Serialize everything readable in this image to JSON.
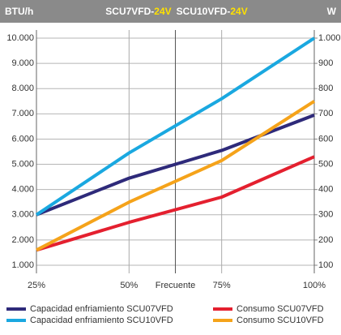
{
  "chart_data": {
    "type": "line",
    "y_label": "BTU/h",
    "y2_label": "W",
    "title": [
      "SCU7VFD-",
      "24V",
      "SCU10VFD-",
      "24V"
    ],
    "x": [
      25,
      50,
      75,
      100
    ],
    "xlim": [
      25,
      100
    ],
    "xticks": [
      {
        "value": 25,
        "label": "25%"
      },
      {
        "value": 50,
        "label": "50%"
      },
      {
        "value": 62.5,
        "label": "Frecuente"
      },
      {
        "value": 75,
        "label": "75%"
      },
      {
        "value": 100,
        "label": "100%"
      }
    ],
    "ylim": [
      1000,
      10000
    ],
    "yticks": [
      {
        "value": 1000,
        "label": "1.000"
      },
      {
        "value": 2000,
        "label": "2.000"
      },
      {
        "value": 3000,
        "label": "3.000"
      },
      {
        "value": 4000,
        "label": "4.000"
      },
      {
        "value": 5000,
        "label": "5.000"
      },
      {
        "value": 6000,
        "label": "6.000"
      },
      {
        "value": 7000,
        "label": "7.000"
      },
      {
        "value": 8000,
        "label": "8.000"
      },
      {
        "value": 9000,
        "label": "9.000"
      },
      {
        "value": 10000,
        "label": "10.000"
      }
    ],
    "y2lim": [
      100,
      1000
    ],
    "y2ticks": [
      100,
      200,
      300,
      400,
      500,
      600,
      700,
      800,
      900,
      {
        "value": 1000,
        "label": "1.000"
      }
    ],
    "grid": true,
    "series": [
      {
        "name": "Capacidad enfriamiento SCU07VFD",
        "color": "#2e2a7a",
        "values": [
          3000,
          4450,
          5550,
          6950
        ]
      },
      {
        "name": "Capacidad enfriamiento SCU10VFD",
        "color": "#1aa8e0",
        "values": [
          3000,
          5450,
          7600,
          10000
        ]
      },
      {
        "name": "Consumo SCU07VFD",
        "color": "#e4202f",
        "axis": "y2",
        "values": [
          160,
          270,
          370,
          530
        ]
      },
      {
        "name": "Consumo SCU10VFD",
        "color": "#f5a31a",
        "axis": "y2",
        "values": [
          160,
          350,
          515,
          750
        ]
      }
    ]
  }
}
